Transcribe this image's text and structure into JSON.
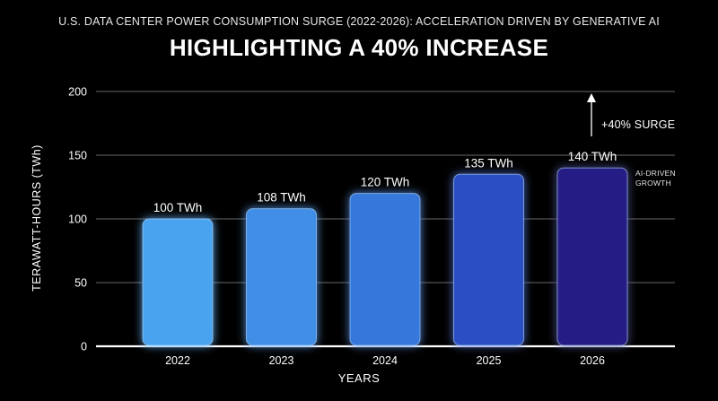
{
  "chart_data": {
    "type": "bar",
    "subtitle": "U.S. DATA CENTER POWER CONSUMPTION SURGE (2022-2026): ACCELERATION DRIVEN BY GENERATIVE AI",
    "title": "HIGHLIGHTING A 40% INCREASE",
    "xlabel": "YEARS",
    "ylabel": "TERAWATT-HOURS (TWh)",
    "categories": [
      "2022",
      "2023",
      "2024",
      "2025",
      "2026"
    ],
    "values": [
      100,
      108,
      120,
      135,
      140
    ],
    "data_labels": [
      "100 TWh",
      "108 TWh",
      "120 TWh",
      "135 TWh",
      "140 TWh"
    ],
    "ylim": [
      0,
      200
    ],
    "yticks": [
      "0",
      "50",
      "100",
      "150",
      "200"
    ],
    "grid": true,
    "bar_colors": [
      "#4aa3ef",
      "#3f8ee6",
      "#3577db",
      "#2a4fc4",
      "#281f86"
    ],
    "annotations": {
      "surge": "+40% SURGE",
      "ai_growth": "AI-DRIVEN GROWTH"
    }
  }
}
